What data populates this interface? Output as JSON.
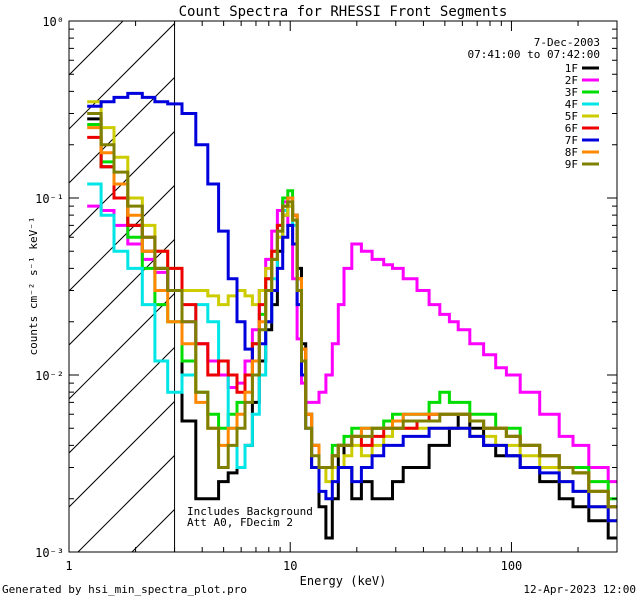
{
  "footer": {
    "generated": "Generated by hsi_min_spectra_plot.pro",
    "timestamp": "12-Apr-2023 12:00"
  },
  "chart_data": {
    "type": "line",
    "title": "Count Spectra for RHESSI Front Segments",
    "xlabel": "Energy (keV)",
    "ylabel": "counts cm⁻² s⁻¹ keV⁻¹",
    "x_scale": "log",
    "y_scale": "log",
    "xlim": [
      1,
      300
    ],
    "ylim": [
      0.001,
      1
    ],
    "x_ticks": [
      {
        "value": 1,
        "label": "1"
      },
      {
        "value": 10,
        "label": "10"
      },
      {
        "value": 100,
        "label": "100"
      }
    ],
    "y_ticks": [
      {
        "value": 1,
        "label": "10⁰"
      },
      {
        "value": 0.1,
        "label": "10⁻¹"
      },
      {
        "value": 0.01,
        "label": "10⁻²"
      },
      {
        "value": 0.001,
        "label": "10⁻³"
      }
    ],
    "hatched_region": [
      1,
      3
    ],
    "annotations": {
      "date": "7-Dec-2003",
      "time_range": "07:41:00 to 07:42:00",
      "background": "Includes Background",
      "attenuator": "Att A0, FDecim 2"
    },
    "legend_position": "top-right",
    "series": [
      {
        "name": "1F",
        "color": "#000000",
        "x": [
          1.3,
          1.5,
          1.7,
          2.0,
          2.3,
          2.6,
          3.0,
          3.5,
          4.0,
          4.5,
          5.0,
          5.5,
          6.0,
          6.5,
          7.0,
          7.5,
          8.0,
          8.5,
          9.0,
          9.5,
          10.0,
          10.5,
          11.0,
          11.5,
          12.0,
          13.0,
          14.0,
          15.0,
          16.0,
          17.0,
          18.0,
          20.0,
          22.0,
          25.0,
          28.0,
          30.0,
          35.0,
          40.0,
          45.0,
          50.0,
          55.0,
          60.0,
          70.0,
          80.0,
          90.0,
          100.0,
          120.0,
          150.0,
          180.0,
          200.0,
          250.0,
          300.0
        ],
        "y": [
          0.28,
          0.15,
          0.1,
          0.07,
          0.05,
          0.04,
          0.03,
          0.0055,
          0.002,
          0.002,
          0.0025,
          0.0028,
          0.003,
          0.004,
          0.007,
          0.012,
          0.018,
          0.025,
          0.05,
          0.08,
          0.09,
          0.08,
          0.04,
          0.015,
          0.006,
          0.003,
          0.0018,
          0.0012,
          0.002,
          0.004,
          0.003,
          0.002,
          0.0025,
          0.002,
          0.002,
          0.0025,
          0.003,
          0.003,
          0.004,
          0.004,
          0.005,
          0.006,
          0.005,
          0.004,
          0.0035,
          0.0035,
          0.003,
          0.0025,
          0.002,
          0.0018,
          0.0015,
          0.0012
        ]
      },
      {
        "name": "2F",
        "color": "#ff00ff",
        "x": [
          1.3,
          1.5,
          1.7,
          2.0,
          2.3,
          2.6,
          3.0,
          3.5,
          4.0,
          4.5,
          5.0,
          5.5,
          6.0,
          6.5,
          7.0,
          7.5,
          8.0,
          8.5,
          9.0,
          9.5,
          10.0,
          10.5,
          11.0,
          11.5,
          12.0,
          13.0,
          14.0,
          15.0,
          16.0,
          17.0,
          18.0,
          20.0,
          22.0,
          25.0,
          28.0,
          30.0,
          35.0,
          40.0,
          45.0,
          50.0,
          55.0,
          60.0,
          70.0,
          80.0,
          90.0,
          100.0,
          120.0,
          150.0,
          180.0,
          200.0,
          250.0,
          300.0
        ],
        "y": [
          0.09,
          0.085,
          0.07,
          0.055,
          0.045,
          0.038,
          0.03,
          0.02,
          0.015,
          0.012,
          0.01,
          0.0085,
          0.009,
          0.012,
          0.018,
          0.03,
          0.045,
          0.065,
          0.085,
          0.095,
          0.07,
          0.035,
          0.016,
          0.009,
          0.007,
          0.007,
          0.008,
          0.01,
          0.015,
          0.025,
          0.04,
          0.055,
          0.05,
          0.045,
          0.042,
          0.04,
          0.035,
          0.03,
          0.025,
          0.022,
          0.02,
          0.018,
          0.015,
          0.013,
          0.011,
          0.01,
          0.008,
          0.006,
          0.0045,
          0.004,
          0.003,
          0.0025
        ]
      },
      {
        "name": "3F",
        "color": "#00dd00",
        "x": [
          1.3,
          1.5,
          1.7,
          2.0,
          2.3,
          2.6,
          3.0,
          3.5,
          4.0,
          4.5,
          5.0,
          5.5,
          6.0,
          6.5,
          7.0,
          7.5,
          8.0,
          8.5,
          9.0,
          9.5,
          10.0,
          10.5,
          11.0,
          11.5,
          12.0,
          13.0,
          14.0,
          15.0,
          16.0,
          17.0,
          18.0,
          20.0,
          22.0,
          25.0,
          28.0,
          30.0,
          35.0,
          40.0,
          45.0,
          50.0,
          55.0,
          60.0,
          70.0,
          80.0,
          90.0,
          100.0,
          120.0,
          150.0,
          180.0,
          200.0,
          250.0,
          300.0
        ],
        "y": [
          0.26,
          0.16,
          0.1,
          0.06,
          0.04,
          0.025,
          0.02,
          0.012,
          0.008,
          0.006,
          0.005,
          0.006,
          0.007,
          0.01,
          0.015,
          0.022,
          0.035,
          0.05,
          0.07,
          0.1,
          0.11,
          0.08,
          0.035,
          0.014,
          0.006,
          0.004,
          0.003,
          0.003,
          0.004,
          0.004,
          0.0045,
          0.005,
          0.005,
          0.005,
          0.0055,
          0.006,
          0.006,
          0.006,
          0.007,
          0.008,
          0.007,
          0.007,
          0.006,
          0.006,
          0.005,
          0.005,
          0.004,
          0.0035,
          0.003,
          0.003,
          0.0025,
          0.002
        ]
      },
      {
        "name": "4F",
        "color": "#00e5e5",
        "x": [
          1.3,
          1.5,
          1.7,
          2.0,
          2.3,
          2.6,
          3.0,
          3.5,
          4.0,
          4.5,
          5.0,
          5.5,
          6.0,
          6.5,
          7.0,
          7.5,
          8.0,
          8.5,
          9.0,
          9.5,
          10.0,
          10.5,
          11.0,
          11.5,
          12.0,
          13.0,
          14.0,
          15.0,
          16.0,
          17.0,
          18.0,
          20.0,
          22.0,
          25.0,
          28.0,
          30.0,
          35.0,
          40.0,
          45.0,
          50.0,
          55.0,
          60.0,
          70.0,
          80.0,
          90.0,
          100.0,
          120.0,
          150.0,
          180.0,
          200.0,
          250.0,
          300.0
        ],
        "y": [
          0.12,
          0.08,
          0.05,
          0.04,
          0.025,
          0.012,
          0.008,
          0.01,
          0.025,
          0.02,
          0.012,
          0.005,
          0.003,
          0.004,
          0.006,
          0.01,
          0.02,
          0.035,
          0.06,
          0.085,
          0.09,
          0.07,
          0.03,
          0.012,
          0.006,
          0.004,
          0.003,
          0.003,
          0.0035,
          0.004,
          0.004,
          0.0045,
          0.005,
          0.005,
          0.005,
          0.0055,
          0.006,
          0.006,
          0.006,
          0.006,
          0.006,
          0.006,
          0.0055,
          0.005,
          0.005,
          0.0045,
          0.004,
          0.0035,
          0.003,
          0.0028,
          0.0022,
          0.0018
        ]
      },
      {
        "name": "5F",
        "color": "#cccc00",
        "x": [
          1.3,
          1.5,
          1.7,
          2.0,
          2.3,
          2.6,
          3.0,
          3.5,
          4.0,
          4.5,
          5.0,
          5.5,
          6.0,
          6.5,
          7.0,
          7.5,
          8.0,
          8.5,
          9.0,
          9.5,
          10.0,
          10.5,
          11.0,
          11.5,
          12.0,
          13.0,
          14.0,
          15.0,
          16.0,
          17.0,
          18.0,
          20.0,
          22.0,
          25.0,
          28.0,
          30.0,
          35.0,
          40.0,
          45.0,
          50.0,
          55.0,
          60.0,
          70.0,
          80.0,
          90.0,
          100.0,
          120.0,
          150.0,
          180.0,
          200.0,
          250.0,
          300.0
        ],
        "y": [
          0.35,
          0.25,
          0.17,
          0.1,
          0.07,
          0.05,
          0.04,
          0.03,
          0.03,
          0.028,
          0.025,
          0.028,
          0.03,
          0.028,
          0.025,
          0.03,
          0.04,
          0.05,
          0.06,
          0.08,
          0.09,
          0.075,
          0.035,
          0.014,
          0.006,
          0.004,
          0.003,
          0.0025,
          0.003,
          0.003,
          0.0035,
          0.004,
          0.0035,
          0.004,
          0.0045,
          0.005,
          0.005,
          0.005,
          0.005,
          0.005,
          0.005,
          0.005,
          0.0045,
          0.0045,
          0.004,
          0.004,
          0.0035,
          0.003,
          0.0025,
          0.0022,
          0.0018,
          0.0015
        ]
      },
      {
        "name": "6F",
        "color": "#ee0000",
        "x": [
          1.3,
          1.5,
          1.7,
          2.0,
          2.3,
          2.6,
          3.0,
          3.5,
          4.0,
          4.5,
          5.0,
          5.5,
          6.0,
          6.5,
          7.0,
          7.5,
          8.0,
          8.5,
          9.0,
          9.5,
          10.0,
          10.5,
          11.0,
          11.5,
          12.0,
          13.0,
          14.0,
          15.0,
          16.0,
          17.0,
          18.0,
          20.0,
          22.0,
          25.0,
          28.0,
          30.0,
          35.0,
          40.0,
          45.0,
          50.0,
          55.0,
          60.0,
          70.0,
          80.0,
          90.0,
          100.0,
          120.0,
          150.0,
          180.0,
          200.0,
          250.0,
          300.0
        ],
        "y": [
          0.22,
          0.15,
          0.1,
          0.07,
          0.06,
          0.05,
          0.04,
          0.025,
          0.015,
          0.01,
          0.012,
          0.01,
          0.008,
          0.01,
          0.015,
          0.025,
          0.035,
          0.05,
          0.07,
          0.09,
          0.1,
          0.08,
          0.035,
          0.014,
          0.006,
          0.004,
          0.003,
          0.003,
          0.0035,
          0.004,
          0.004,
          0.0045,
          0.004,
          0.0045,
          0.005,
          0.005,
          0.005,
          0.0055,
          0.006,
          0.006,
          0.006,
          0.006,
          0.0055,
          0.005,
          0.005,
          0.0045,
          0.004,
          0.0035,
          0.003,
          0.0028,
          0.0022,
          0.0018
        ]
      },
      {
        "name": "7F",
        "color": "#0000dd",
        "x": [
          1.3,
          1.5,
          1.7,
          2.0,
          2.3,
          2.6,
          3.0,
          3.5,
          4.0,
          4.5,
          5.0,
          5.5,
          6.0,
          6.5,
          7.0,
          7.5,
          8.0,
          8.5,
          9.0,
          9.5,
          10.0,
          10.5,
          11.0,
          11.5,
          12.0,
          13.0,
          14.0,
          15.0,
          16.0,
          17.0,
          18.0,
          20.0,
          22.0,
          25.0,
          28.0,
          30.0,
          35.0,
          40.0,
          45.0,
          50.0,
          55.0,
          60.0,
          70.0,
          80.0,
          90.0,
          100.0,
          120.0,
          150.0,
          180.0,
          200.0,
          250.0,
          300.0
        ],
        "y": [
          0.33,
          0.35,
          0.37,
          0.39,
          0.37,
          0.35,
          0.34,
          0.3,
          0.2,
          0.12,
          0.065,
          0.035,
          0.02,
          0.014,
          0.012,
          0.015,
          0.02,
          0.03,
          0.04,
          0.06,
          0.07,
          0.055,
          0.025,
          0.01,
          0.005,
          0.003,
          0.0022,
          0.002,
          0.0025,
          0.003,
          0.003,
          0.0025,
          0.003,
          0.0035,
          0.004,
          0.004,
          0.0045,
          0.0045,
          0.005,
          0.005,
          0.005,
          0.005,
          0.0045,
          0.004,
          0.004,
          0.0035,
          0.003,
          0.0028,
          0.0025,
          0.0022,
          0.0018,
          0.0015
        ]
      },
      {
        "name": "8F",
        "color": "#ff8800",
        "x": [
          1.3,
          1.5,
          1.7,
          2.0,
          2.3,
          2.6,
          3.0,
          3.5,
          4.0,
          4.5,
          5.0,
          5.5,
          6.0,
          6.5,
          7.0,
          7.5,
          8.0,
          8.5,
          9.0,
          9.5,
          10.0,
          10.5,
          11.0,
          11.5,
          12.0,
          13.0,
          14.0,
          15.0,
          16.0,
          17.0,
          18.0,
          20.0,
          22.0,
          25.0,
          28.0,
          30.0,
          35.0,
          40.0,
          45.0,
          50.0,
          55.0,
          60.0,
          70.0,
          80.0,
          90.0,
          100.0,
          120.0,
          150.0,
          180.0,
          200.0,
          250.0,
          300.0
        ],
        "y": [
          0.25,
          0.18,
          0.12,
          0.08,
          0.05,
          0.03,
          0.02,
          0.015,
          0.007,
          0.005,
          0.004,
          0.005,
          0.006,
          0.008,
          0.012,
          0.02,
          0.03,
          0.045,
          0.065,
          0.09,
          0.1,
          0.08,
          0.035,
          0.014,
          0.006,
          0.004,
          0.003,
          0.003,
          0.0035,
          0.004,
          0.004,
          0.0045,
          0.005,
          0.005,
          0.005,
          0.0055,
          0.006,
          0.006,
          0.006,
          0.006,
          0.006,
          0.006,
          0.0055,
          0.005,
          0.005,
          0.0045,
          0.004,
          0.0035,
          0.003,
          0.0028,
          0.0022,
          0.0018
        ]
      },
      {
        "name": "9F",
        "color": "#808000",
        "x": [
          1.3,
          1.5,
          1.7,
          2.0,
          2.3,
          2.6,
          3.0,
          3.5,
          4.0,
          4.5,
          5.0,
          5.5,
          6.0,
          6.5,
          7.0,
          7.5,
          8.0,
          8.5,
          9.0,
          9.5,
          10.0,
          10.5,
          11.0,
          11.5,
          12.0,
          13.0,
          14.0,
          15.0,
          16.0,
          17.0,
          18.0,
          20.0,
          22.0,
          25.0,
          28.0,
          30.0,
          35.0,
          40.0,
          45.0,
          50.0,
          55.0,
          60.0,
          70.0,
          80.0,
          90.0,
          100.0,
          120.0,
          150.0,
          180.0,
          200.0,
          250.0,
          300.0
        ],
        "y": [
          0.3,
          0.2,
          0.14,
          0.09,
          0.06,
          0.04,
          0.03,
          0.02,
          0.008,
          0.005,
          0.003,
          0.004,
          0.005,
          0.007,
          0.01,
          0.018,
          0.03,
          0.045,
          0.065,
          0.09,
          0.095,
          0.075,
          0.03,
          0.012,
          0.005,
          0.0035,
          0.003,
          0.003,
          0.0035,
          0.004,
          0.004,
          0.0045,
          0.0045,
          0.005,
          0.005,
          0.005,
          0.0055,
          0.0055,
          0.0055,
          0.006,
          0.006,
          0.006,
          0.0055,
          0.005,
          0.005,
          0.0045,
          0.004,
          0.0035,
          0.003,
          0.0028,
          0.0022,
          0.0018
        ]
      }
    ]
  }
}
